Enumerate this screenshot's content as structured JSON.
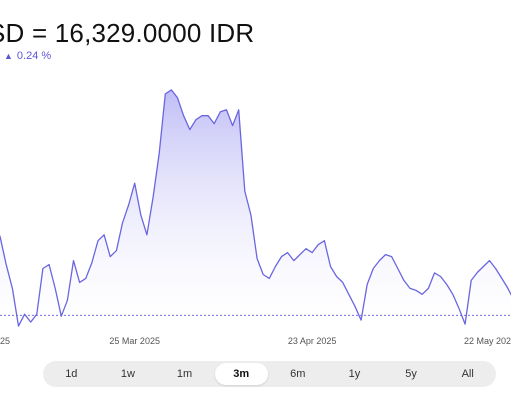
{
  "header": {
    "title": "SD = 16,329.0000 IDR",
    "change": "0.24 %",
    "change_icon": "triangle-up-icon",
    "accent_color": "#5b57d6"
  },
  "chart_data": {
    "type": "area",
    "x": [
      "2025-03-02",
      "2025-03-03",
      "2025-03-04",
      "2025-03-05",
      "2025-03-06",
      "2025-03-07",
      "2025-03-08",
      "2025-03-09",
      "2025-03-10",
      "2025-03-11",
      "2025-03-12",
      "2025-03-13",
      "2025-03-14",
      "2025-03-15",
      "2025-03-16",
      "2025-03-17",
      "2025-03-18",
      "2025-03-19",
      "2025-03-20",
      "2025-03-21",
      "2025-03-22",
      "2025-03-23",
      "2025-03-24",
      "2025-03-25",
      "2025-03-26",
      "2025-03-27",
      "2025-03-28",
      "2025-03-29",
      "2025-03-30",
      "2025-03-31",
      "2025-04-01",
      "2025-04-02",
      "2025-04-03",
      "2025-04-04",
      "2025-04-05",
      "2025-04-06",
      "2025-04-07",
      "2025-04-08",
      "2025-04-09",
      "2025-04-10",
      "2025-04-11",
      "2025-04-12",
      "2025-04-13",
      "2025-04-14",
      "2025-04-15",
      "2025-04-16",
      "2025-04-17",
      "2025-04-18",
      "2025-04-19",
      "2025-04-20",
      "2025-04-21",
      "2025-04-22",
      "2025-04-23",
      "2025-04-24",
      "2025-04-25",
      "2025-04-26",
      "2025-04-27",
      "2025-04-28",
      "2025-04-29",
      "2025-04-30",
      "2025-05-01",
      "2025-05-02",
      "2025-05-03",
      "2025-05-04",
      "2025-05-05",
      "2025-05-06",
      "2025-05-07",
      "2025-05-08",
      "2025-05-09",
      "2025-05-10",
      "2025-05-11",
      "2025-05-12",
      "2025-05-13",
      "2025-05-14",
      "2025-05-15",
      "2025-05-16",
      "2025-05-17",
      "2025-05-18",
      "2025-05-19",
      "2025-05-20",
      "2025-05-21",
      "2025-05-22",
      "2025-05-23",
      "2025-05-24",
      "2025-05-25",
      "2025-05-26"
    ],
    "values": [
      16460,
      16420,
      16350,
      16290,
      16195,
      16225,
      16205,
      16225,
      16340,
      16350,
      16290,
      16220,
      16260,
      16360,
      16305,
      16315,
      16355,
      16410,
      16425,
      16370,
      16385,
      16455,
      16500,
      16555,
      16475,
      16425,
      16520,
      16630,
      16780,
      16790,
      16770,
      16725,
      16690,
      16715,
      16725,
      16725,
      16705,
      16735,
      16740,
      16700,
      16740,
      16535,
      16475,
      16365,
      16325,
      16315,
      16345,
      16370,
      16380,
      16360,
      16375,
      16390,
      16380,
      16400,
      16410,
      16345,
      16320,
      16305,
      16275,
      16245,
      16210,
      16300,
      16340,
      16360,
      16375,
      16370,
      16340,
      16310,
      16290,
      16285,
      16275,
      16290,
      16329,
      16320,
      16300,
      16275,
      16240,
      16200,
      16310,
      16330,
      16345,
      16360,
      16340,
      16315,
      16290,
      16260
    ],
    "x_ticks": [
      {
        "x": "2025-03-25",
        "label": "25 Mar 2025"
      },
      {
        "x": "2025-04-23",
        "label": "23 Apr 2025"
      },
      {
        "x": "2025-05-22",
        "label": "22 May 2025"
      }
    ],
    "edge_labels": {
      "left": "25",
      "right": "22 May 202"
    },
    "ylim": [
      16170,
      16820
    ],
    "baseline": 16222,
    "line_color": "#6b66e0",
    "fill_top": "#bdbaf5",
    "fill_bottom": "#ffffff",
    "grid": false
  },
  "range_selector": {
    "options": [
      "1d",
      "1w",
      "1m",
      "3m",
      "6m",
      "1y",
      "5y",
      "All"
    ],
    "selected": "3m"
  }
}
